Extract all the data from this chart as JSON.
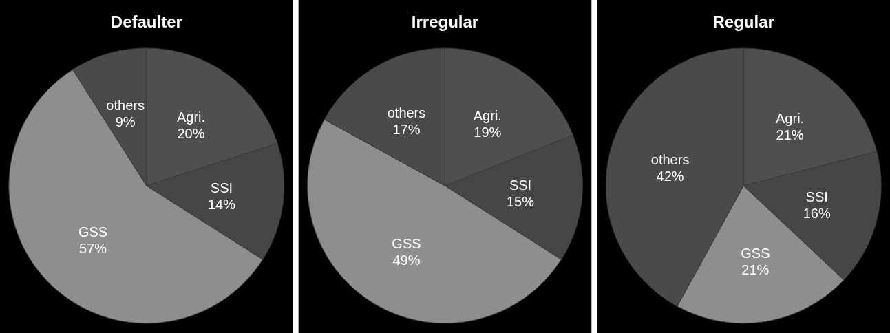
{
  "chart_data": [
    {
      "type": "pie",
      "title": "Defaulter",
      "categories": [
        "Agri.",
        "SSI",
        "GSS",
        "others"
      ],
      "values": [
        20,
        14,
        57,
        9
      ],
      "value_labels": [
        "20%",
        "14%",
        "57%",
        "9%"
      ],
      "colors": [
        "#4f4f4f",
        "#464646",
        "#8e8e8e",
        "#4a4a4a"
      ]
    },
    {
      "type": "pie",
      "title": "Irregular",
      "categories": [
        "Agri.",
        "SSI",
        "GSS",
        "others"
      ],
      "values": [
        19,
        15,
        49,
        17
      ],
      "value_labels": [
        "19%",
        "15%",
        "49%",
        "17%"
      ],
      "colors": [
        "#4f4f4f",
        "#464646",
        "#8e8e8e",
        "#4a4a4a"
      ]
    },
    {
      "type": "pie",
      "title": "Regular",
      "categories": [
        "Agri.",
        "SSI",
        "GSS",
        "others"
      ],
      "values": [
        21,
        16,
        21,
        42
      ],
      "value_labels": [
        "21%",
        "16%",
        "21%",
        "42%"
      ],
      "colors": [
        "#4f4f4f",
        "#464646",
        "#8e8e8e",
        "#4a4a4a"
      ]
    }
  ]
}
